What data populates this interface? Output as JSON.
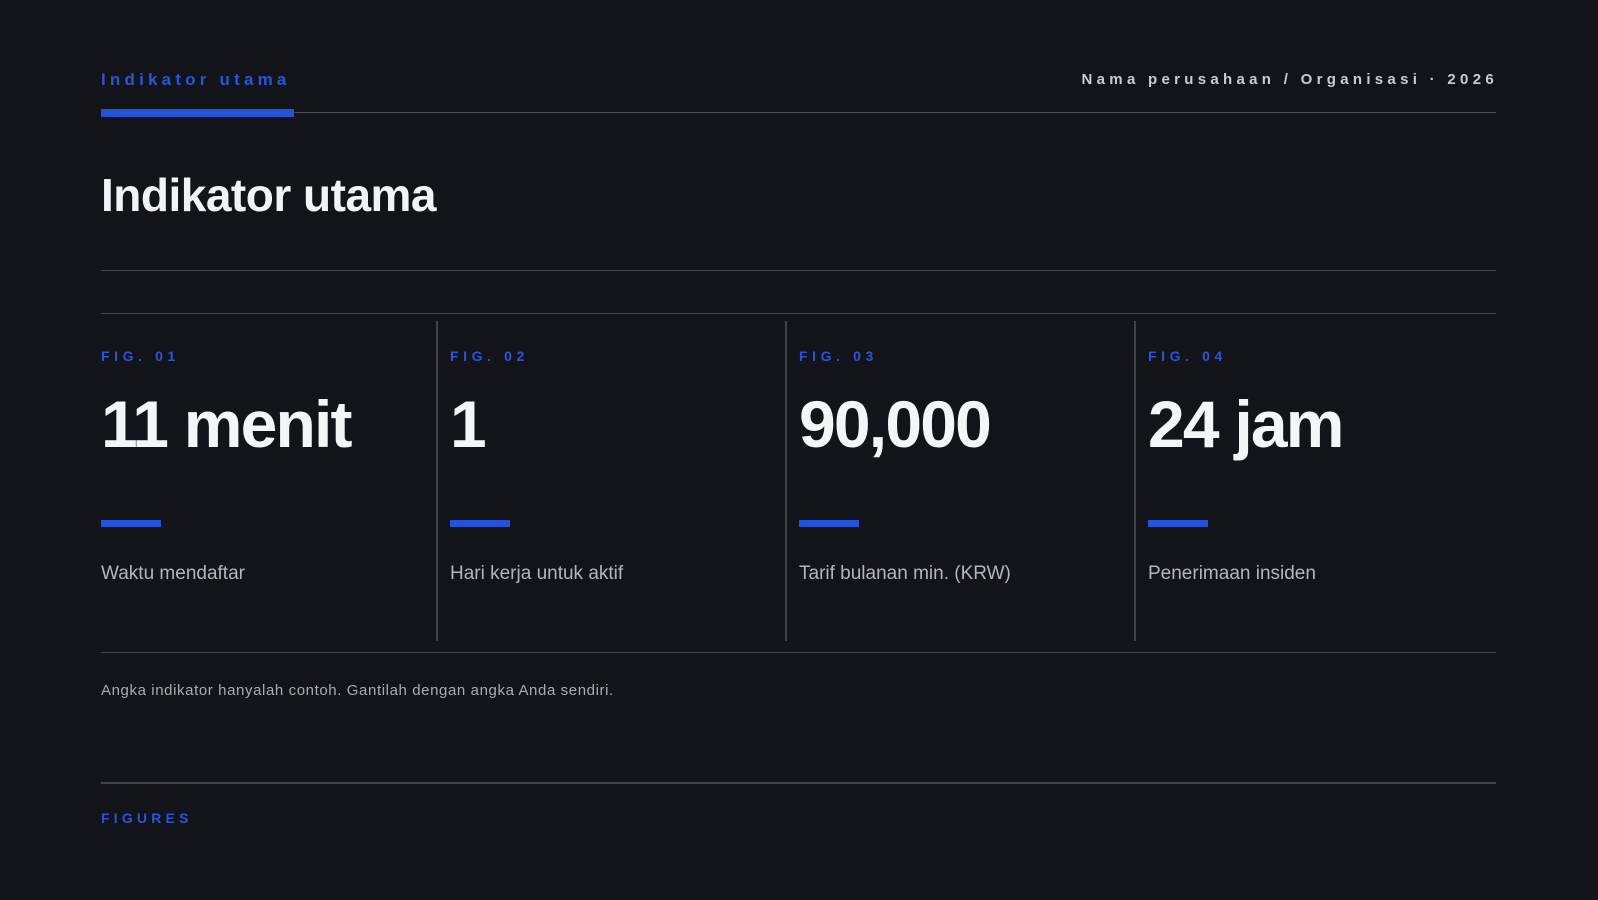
{
  "header": {
    "kicker": "Indikator utama",
    "organization": "Nama perusahaan / Organisasi · 2026"
  },
  "title": "Indikator utama",
  "metrics": [
    {
      "fig": "FIG. 01",
      "value": "11 menit",
      "label": "Waktu mendaftar"
    },
    {
      "fig": "FIG. 02",
      "value": "1",
      "label": "Hari kerja untuk aktif"
    },
    {
      "fig": "FIG. 03",
      "value": "90,000",
      "label": "Tarif bulanan min. (KRW)"
    },
    {
      "fig": "FIG. 04",
      "value": "24 jam",
      "label": "Penerimaan insiden"
    }
  ],
  "footnote": "Angka indikator hanyalah contoh. Gantilah dengan angka Anda sendiri.",
  "footer": {
    "label": "FIGURES"
  },
  "colors": {
    "background": "#121419",
    "accent": "#2452d8",
    "text_primary": "#f4f5f7",
    "text_secondary": "#b2b6bf",
    "rule": "#3f434b"
  }
}
